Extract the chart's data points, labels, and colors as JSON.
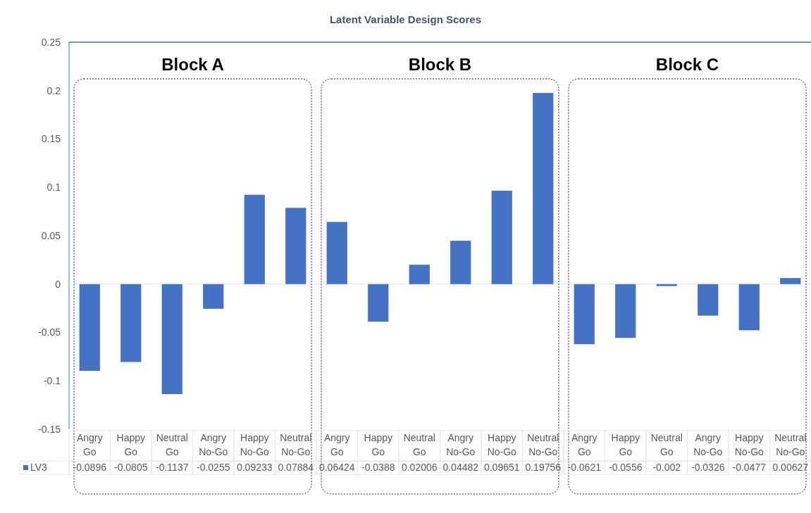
{
  "chart_data": {
    "type": "bar",
    "title": "Latent Variable  Design Scores",
    "categories": [
      "Angry Go",
      "Happy Go",
      "Neutral Go",
      "Angry No-Go",
      "Happy No-Go",
      "Neutral No-Go",
      "Angry Go",
      "Happy Go",
      "Neutral Go",
      "Angry No-Go",
      "Happy No-Go",
      "Neutral No-Go",
      "Angry Go",
      "Happy Go",
      "Neutral Go",
      "Angry No-Go",
      "Happy No-Go",
      "Neutral No-Go"
    ],
    "series": [
      {
        "name": "LV3",
        "color": "#4472c4",
        "values": [
          -0.0896,
          -0.0805,
          -0.1137,
          -0.0255,
          0.09233,
          0.07884,
          0.06424,
          -0.0388,
          0.02006,
          0.04482,
          0.09651,
          0.19756,
          -0.0621,
          -0.0556,
          -0.002,
          -0.0326,
          -0.0477,
          0.00627
        ]
      }
    ],
    "ylim": [
      -0.15,
      0.25
    ],
    "yticks": [
      -0.15,
      -0.1,
      -0.05,
      0,
      0.05,
      0.1,
      0.15,
      0.2,
      0.25
    ],
    "data_labels": true,
    "legend": "bottom",
    "annotations": [
      "Block A",
      "Block B",
      "Block C"
    ]
  }
}
